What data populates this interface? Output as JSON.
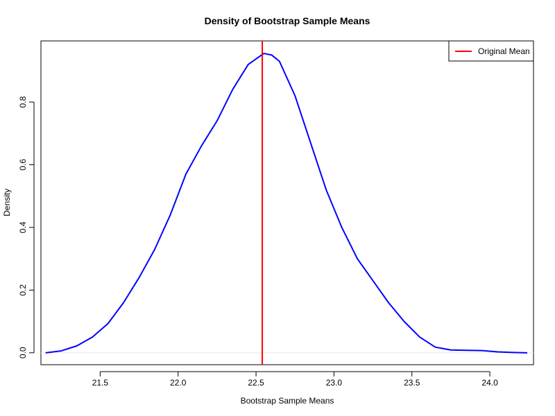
{
  "chart_data": {
    "type": "line",
    "title": "Density of Bootstrap Sample Means",
    "xlabel": "Bootstrap Sample Means",
    "ylabel": "Density",
    "xlim": [
      21.12,
      24.28
    ],
    "ylim": [
      -0.038,
      0.995
    ],
    "x_ticks": [
      21.5,
      22.0,
      22.5,
      23.0,
      23.5,
      24.0
    ],
    "x_tick_labels": [
      "21.5",
      "22.0",
      "22.5",
      "23.0",
      "23.5",
      "24.0"
    ],
    "y_ticks": [
      0.0,
      0.2,
      0.4,
      0.6,
      0.8
    ],
    "y_tick_labels": [
      "0.0",
      "0.2",
      "0.4",
      "0.6",
      "0.8"
    ],
    "grid": false,
    "legend_position": "top-right",
    "series": [
      {
        "name": "Density",
        "color": "#0000ff",
        "x": [
          21.15,
          21.25,
          21.35,
          21.45,
          21.55,
          21.65,
          21.75,
          21.85,
          21.95,
          22.05,
          22.15,
          22.25,
          22.35,
          22.45,
          22.55,
          22.6,
          22.65,
          22.75,
          22.85,
          22.95,
          23.05,
          23.15,
          23.25,
          23.35,
          23.45,
          23.55,
          23.65,
          23.75,
          23.85,
          23.95,
          24.05,
          24.15,
          24.24
        ],
        "y": [
          0.0,
          0.006,
          0.022,
          0.05,
          0.093,
          0.16,
          0.24,
          0.33,
          0.44,
          0.57,
          0.66,
          0.74,
          0.84,
          0.92,
          0.955,
          0.95,
          0.93,
          0.82,
          0.67,
          0.52,
          0.4,
          0.3,
          0.23,
          0.16,
          0.1,
          0.05,
          0.018,
          0.009,
          0.008,
          0.007,
          0.003,
          0.001,
          0.0
        ]
      }
    ],
    "vlines": [
      {
        "name": "Original Mean",
        "x": 22.54,
        "color": "#ff0000"
      }
    ],
    "zero_line_color": "#e6e6e6"
  }
}
